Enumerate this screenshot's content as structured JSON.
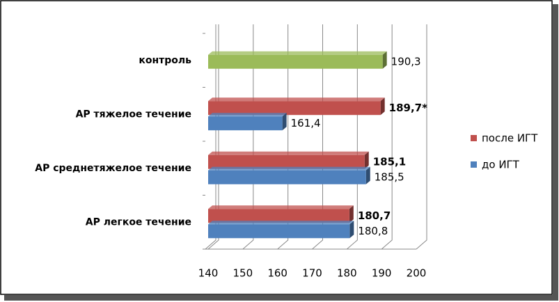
{
  "chart_data": {
    "type": "bar",
    "orientation": "horizontal",
    "categories": [
      "АР легкое течение",
      "АР среднетяжелое течение",
      "АР тяжелое течение",
      "контроль"
    ],
    "series": [
      {
        "name": "после ИГТ",
        "color": "#c0504d",
        "values": [
          180.7,
          185.1,
          189.7,
          null
        ],
        "value_labels": [
          "180,7",
          "185,1",
          "189,7*",
          null
        ],
        "bold_labels": true
      },
      {
        "name": "до ИГТ",
        "color": "#4f81bd",
        "values": [
          180.8,
          185.5,
          161.4,
          null
        ],
        "value_labels": [
          "180,8",
          "185,5",
          "161,4",
          null
        ]
      },
      {
        "color": "#9bbb59",
        "values": [
          null,
          null,
          null,
          190.3
        ],
        "value_labels": [
          null,
          null,
          null,
          "190,3"
        ]
      }
    ],
    "xlim": [
      140,
      200
    ],
    "xticks": [
      140,
      150,
      160,
      170,
      180,
      190,
      200
    ],
    "grid": true,
    "legend": "right"
  }
}
